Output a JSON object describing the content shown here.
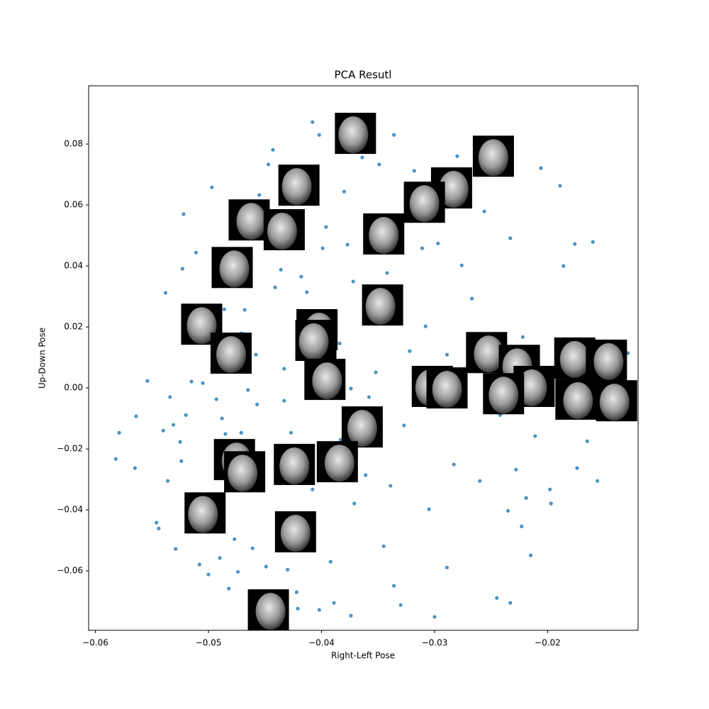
{
  "chart_data": {
    "type": "scatter",
    "title": "PCA Resutl",
    "x_label": "Right-Left Pose",
    "y_label": "Up-Down Pose",
    "xlim": [
      -0.0606,
      -0.012
    ],
    "ylim": [
      -0.0795,
      0.0991
    ],
    "xticks": [
      {
        "value": -0.06,
        "label": "−0.06"
      },
      {
        "value": -0.05,
        "label": "−0.05"
      },
      {
        "value": -0.04,
        "label": "−0.04"
      },
      {
        "value": -0.03,
        "label": "−0.03"
      },
      {
        "value": -0.02,
        "label": "−0.02"
      }
    ],
    "yticks": [
      {
        "value": -0.06,
        "label": "−0.06"
      },
      {
        "value": -0.04,
        "label": "−0.04"
      },
      {
        "value": -0.02,
        "label": "−0.02"
      },
      {
        "value": 0,
        "label": "0.00"
      },
      0.02,
      0.04,
      0.06,
      0.08
    ],
    "color": "#1f77b4",
    "x": [
      -0.0582,
      -0.0579,
      -0.0565,
      -0.0564,
      -0.0554,
      -0.0546,
      -0.0544,
      -0.054,
      -0.0538,
      -0.0534,
      -0.0531,
      -0.0536,
      -0.0529,
      -0.0525,
      -0.0524,
      -0.0523,
      -0.0522,
      -0.052,
      -0.0515,
      -0.0511,
      -0.0508,
      -0.0505,
      -0.05,
      -0.0497,
      -0.0493,
      -0.049,
      -0.0488,
      -0.0486,
      -0.0485,
      -0.0482,
      -0.0477,
      -0.0474,
      -0.0471,
      -0.0468,
      -0.0465,
      -0.0461,
      -0.0458,
      -0.0457,
      -0.0455,
      -0.0449,
      -0.0447,
      -0.0443,
      -0.0441,
      -0.0436,
      -0.0433,
      -0.043,
      -0.0427,
      -0.0422,
      -0.0418,
      -0.0413,
      -0.0408,
      -0.0405,
      -0.0402,
      -0.0399,
      -0.0396,
      -0.0392,
      -0.0389,
      -0.0384,
      -0.038,
      -0.0377,
      -0.0374,
      -0.0372,
      -0.0371,
      -0.0367,
      -0.0364,
      -0.0361,
      -0.0358,
      -0.0352,
      -0.0349,
      -0.0345,
      -0.0342,
      -0.0339,
      -0.0336,
      -0.033,
      -0.0327,
      -0.0322,
      -0.0318,
      -0.0311,
      -0.0308,
      -0.0305,
      -0.03,
      -0.0297,
      -0.0289,
      -0.0283,
      -0.028,
      -0.0276,
      -0.0267,
      -0.026,
      -0.0256,
      -0.0242,
      -0.0235,
      -0.0233,
      -0.0228,
      -0.0223,
      -0.0219,
      -0.0215,
      -0.0211,
      -0.0206,
      -0.0198,
      -0.0197,
      -0.0189,
      -0.0186,
      -0.0176,
      -0.0174,
      -0.0165,
      -0.016,
      -0.0156,
      -0.0129,
      -0.0402,
      -0.0374,
      -0.0336,
      -0.0245,
      -0.0233,
      -0.0421,
      -0.0408,
      -0.0505,
      -0.0421,
      -0.0383,
      -0.049,
      -0.0518,
      -0.0433,
      -0.0471,
      -0.0289,
      -0.027,
      -0.0222
    ],
    "y": [
      -0.0233,
      -0.0147,
      -0.0263,
      -0.0093,
      0.0023,
      -0.0442,
      -0.0461,
      -0.014,
      0.0312,
      -0.003,
      -0.0121,
      -0.0305,
      -0.0528,
      -0.0177,
      -0.024,
      0.0391,
      0.057,
      -0.0089,
      0.0021,
      0.0444,
      -0.0579,
      0.0016,
      -0.0612,
      0.0658,
      -0.0037,
      -0.0558,
      -0.01,
      0.0258,
      -0.0151,
      -0.0658,
      -0.0496,
      -0.0603,
      0.0179,
      0.0256,
      -0.0007,
      -0.0526,
      0.0109,
      -0.0054,
      0.0633,
      -0.0586,
      0.0733,
      0.0781,
      0.033,
      0.0388,
      -0.0042,
      -0.0596,
      -0.0147,
      -0.067,
      0.0365,
      0.0314,
      0.0872,
      -0.0002,
      0.083,
      0.0458,
      0.0528,
      -0.057,
      -0.0705,
      0.0146,
      0.0644,
      0.047,
      -0.0002,
      0.0349,
      -0.0379,
      0.0853,
      0.0756,
      -0.0286,
      -0.003,
      0.0051,
      0.0733,
      -0.0519,
      0.0377,
      -0.0321,
      0.083,
      -0.0712,
      -0.0123,
      0.0121,
      0.0712,
      0.0458,
      0.0202,
      -0.0398,
      -0.0751,
      0.0474,
      -0.0589,
      -0.0251,
      0.076,
      0.0402,
      0.0293,
      -0.0305,
      0.0579,
      -0.0089,
      -0.0403,
      0.0491,
      -0.0268,
      -0.0454,
      -0.0361,
      -0.0549,
      -0.0158,
      0.0721,
      -0.0333,
      -0.0379,
      0.0663,
      0.04,
      0.0472,
      -0.0263,
      -0.0175,
      0.0479,
      -0.0305,
      0.0114,
      -0.0728,
      -0.0747,
      -0.0649,
      -0.0689,
      -0.0705,
      -0.0724,
      -0.0333,
      -0.0437,
      0.0574,
      -0.017,
      -0.0286,
      -0.0356,
      0.0063,
      -0.0147,
      0.0109,
      0.0167,
      0.0167
    ],
    "thumbnails": {
      "x": [
        -0.037,
        -0.0248,
        -0.0285,
        -0.042,
        -0.0309,
        -0.0464,
        -0.0433,
        -0.0345,
        -0.0479,
        -0.0346,
        -0.0506,
        -0.0404,
        -0.0405,
        -0.048,
        -0.0397,
        -0.0302,
        -0.0289,
        -0.0254,
        -0.0225,
        -0.0176,
        -0.0148,
        -0.0212,
        -0.0239,
        -0.0175,
        -0.0139,
        -0.0364,
        -0.0477,
        -0.0468,
        -0.0424,
        -0.0386,
        -0.0503,
        -0.0423,
        -0.0447
      ],
      "y": [
        0.0835,
        0.076,
        0.0656,
        0.0665,
        0.0609,
        0.0551,
        0.0519,
        0.0505,
        0.0395,
        0.0272,
        0.0209,
        0.0191,
        0.0156,
        0.0114,
        0.0028,
        0.0005,
        0,
        0.0116,
        0.0074,
        0.0098,
        0.0091,
        0.0005,
        -0.0019,
        -0.0037,
        -0.0042,
        -0.0128,
        -0.0235,
        -0.0275,
        -0.0251,
        -0.0242,
        -0.041,
        -0.0472,
        -0.0728
      ]
    }
  }
}
